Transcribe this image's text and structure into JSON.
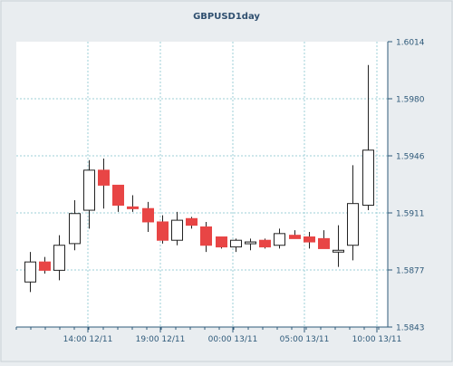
{
  "chart_data": {
    "type": "candlestick",
    "title": "GBPUSD1day",
    "xlabel": "",
    "ylabel": "",
    "ylim": [
      1.5843,
      1.6014
    ],
    "y_ticks": [
      "1.6014",
      "1.5980",
      "1.5946",
      "1.5911",
      "1.5877",
      "1.5843"
    ],
    "x_ticks": [
      "14:00 12/11",
      "19:00 12/11",
      "00:00 13/11",
      "05:00 13/11",
      "10:00 13/11"
    ],
    "grid": true,
    "colors": {
      "up": "#ffffff",
      "down": "#e84545",
      "outline": "#222222",
      "grid": "#9ccfd7",
      "axis": "#2f5a7a"
    },
    "candles": [
      {
        "open": 1.587,
        "high": 1.5888,
        "low": 1.5864,
        "close": 1.5882
      },
      {
        "open": 1.5882,
        "high": 1.5885,
        "low": 1.5875,
        "close": 1.5877
      },
      {
        "open": 1.5877,
        "high": 1.5898,
        "low": 1.5871,
        "close": 1.5892
      },
      {
        "open": 1.5893,
        "high": 1.5919,
        "low": 1.5889,
        "close": 1.5911
      },
      {
        "open": 1.5913,
        "high": 1.5943,
        "low": 1.5902,
        "close": 1.5937
      },
      {
        "open": 1.5937,
        "high": 1.5944,
        "low": 1.5914,
        "close": 1.5928
      },
      {
        "open": 1.5928,
        "high": 1.5928,
        "low": 1.5912,
        "close": 1.5916
      },
      {
        "open": 1.5915,
        "high": 1.5922,
        "low": 1.5912,
        "close": 1.5914
      },
      {
        "open": 1.5914,
        "high": 1.5918,
        "low": 1.59,
        "close": 1.5906
      },
      {
        "open": 1.5906,
        "high": 1.591,
        "low": 1.5893,
        "close": 1.5895
      },
      {
        "open": 1.5895,
        "high": 1.5912,
        "low": 1.5892,
        "close": 1.5907
      },
      {
        "open": 1.5908,
        "high": 1.5909,
        "low": 1.5902,
        "close": 1.5904
      },
      {
        "open": 1.5903,
        "high": 1.5906,
        "low": 1.5888,
        "close": 1.5892
      },
      {
        "open": 1.5897,
        "high": 1.5897,
        "low": 1.589,
        "close": 1.5891
      },
      {
        "open": 1.5891,
        "high": 1.5896,
        "low": 1.5888,
        "close": 1.5895
      },
      {
        "open": 1.5893,
        "high": 1.5896,
        "low": 1.5889,
        "close": 1.5894
      },
      {
        "open": 1.5895,
        "high": 1.5896,
        "low": 1.589,
        "close": 1.5891
      },
      {
        "open": 1.5892,
        "high": 1.5902,
        "low": 1.589,
        "close": 1.5899
      },
      {
        "open": 1.5898,
        "high": 1.5901,
        "low": 1.5897,
        "close": 1.5896
      },
      {
        "open": 1.5897,
        "high": 1.59,
        "low": 1.589,
        "close": 1.5894
      },
      {
        "open": 1.5896,
        "high": 1.5901,
        "low": 1.589,
        "close": 1.589
      },
      {
        "open": 1.5888,
        "high": 1.5904,
        "low": 1.5879,
        "close": 1.5889
      },
      {
        "open": 1.5892,
        "high": 1.594,
        "low": 1.5883,
        "close": 1.5917
      },
      {
        "open": 1.5916,
        "high": 1.6,
        "low": 1.5913,
        "close": 1.5949
      }
    ]
  }
}
